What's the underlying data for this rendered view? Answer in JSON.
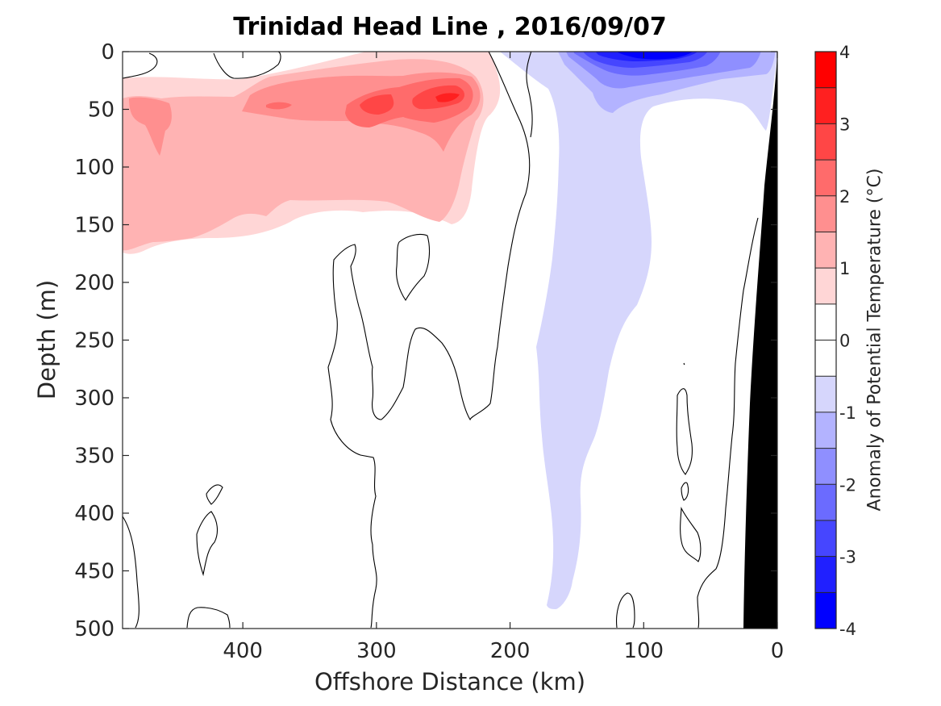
{
  "chart_data": {
    "type": "heatmap",
    "title": "Trinidad Head Line , 2016/09/07",
    "xlabel": "Offshore Distance (km)",
    "ylabel": "Depth (m)",
    "xlim": [
      490,
      0
    ],
    "ylim": [
      0,
      500
    ],
    "x_reversed": true,
    "y_reversed": true,
    "x_ticks": [
      400,
      300,
      200,
      100,
      0
    ],
    "x_tick_labels": [
      "400",
      "300",
      "200",
      "100",
      "0"
    ],
    "y_ticks": [
      0,
      50,
      100,
      150,
      200,
      250,
      300,
      350,
      400,
      450,
      500
    ],
    "y_tick_labels": [
      "0",
      "50",
      "100",
      "150",
      "200",
      "250",
      "300",
      "350",
      "400",
      "450",
      "500"
    ],
    "grid": false,
    "colorbar": {
      "label": "Anomaly of Potential Temperature (°C)",
      "range": [
        -4,
        4
      ],
      "step": 0.5,
      "tick_values": [
        4,
        3,
        2,
        1,
        0,
        -1,
        -2,
        -3,
        -4
      ],
      "tick_labels": [
        "4",
        "3",
        "2",
        "1",
        "0",
        "-1",
        "-2",
        "-3",
        "-4"
      ],
      "colors": [
        "#0000ff",
        "#2020ff",
        "#4646ff",
        "#6b6bff",
        "#8f8fff",
        "#b3b3ff",
        "#d6d6fc",
        "#ffffff",
        "#ffffff",
        "#ffd6d6",
        "#ffb3b3",
        "#ff8f8f",
        "#ff6b6b",
        "#ff4646",
        "#ff2020",
        "#ff0000"
      ]
    },
    "features": [
      {
        "kind": "warm_anomaly",
        "max_value": 3.0,
        "x_range": [
          490,
          205
        ],
        "depth_range": [
          0,
          175
        ]
      },
      {
        "kind": "cold_anomaly",
        "min_value": -3.5,
        "x_range": [
          210,
          0
        ],
        "depth_range": [
          0,
          490
        ]
      },
      {
        "kind": "zero_contour",
        "color": "#000000"
      },
      {
        "kind": "seafloor_shelf",
        "color": "#000000",
        "x_range": [
          25,
          0
        ]
      }
    ]
  }
}
